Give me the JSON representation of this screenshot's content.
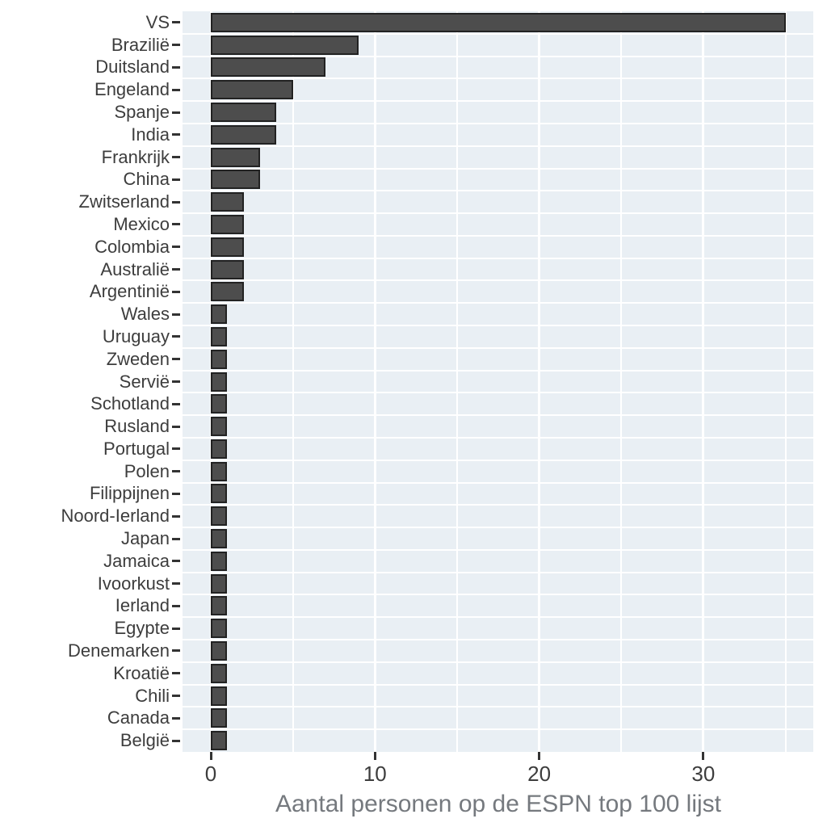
{
  "chart_data": {
    "type": "bar",
    "orientation": "horizontal",
    "title": "",
    "xlabel": "Aantal personen op de ESPN top 100 lijst",
    "ylabel": "",
    "categories": [
      "VS",
      "Brazilië",
      "Duitsland",
      "Engeland",
      "Spanje",
      "India",
      "Frankrijk",
      "China",
      "Zwitserland",
      "Mexico",
      "Colombia",
      "Australië",
      "Argentinië",
      "Wales",
      "Uruguay",
      "Zweden",
      "Servië",
      "Schotland",
      "Rusland",
      "Portugal",
      "Polen",
      "Filippijnen",
      "Noord-Ierland",
      "Japan",
      "Jamaica",
      "Ivoorkust",
      "Ierland",
      "Egypte",
      "Denemarken",
      "Kroatië",
      "Chili",
      "Canada",
      "België"
    ],
    "values": [
      35,
      9,
      7,
      5,
      4,
      4,
      3,
      3,
      2,
      2,
      2,
      2,
      2,
      1,
      1,
      1,
      1,
      1,
      1,
      1,
      1,
      1,
      1,
      1,
      1,
      1,
      1,
      1,
      1,
      1,
      1,
      1,
      1
    ],
    "x_ticks": [
      0,
      10,
      20,
      30
    ],
    "x_gridlines": [
      0,
      5,
      10,
      15,
      20,
      25,
      30,
      35
    ],
    "xlim": [
      0,
      36.7
    ],
    "grid": true,
    "legend": false,
    "colors": {
      "bar_fill": "#4d4d4d",
      "bar_stroke": "#222222",
      "panel_background": "#e9eff4",
      "gridline": "#ffffff",
      "axis_text": "#3d3d3d",
      "tick_mark": "#333333",
      "axis_title": "#75797e"
    }
  }
}
